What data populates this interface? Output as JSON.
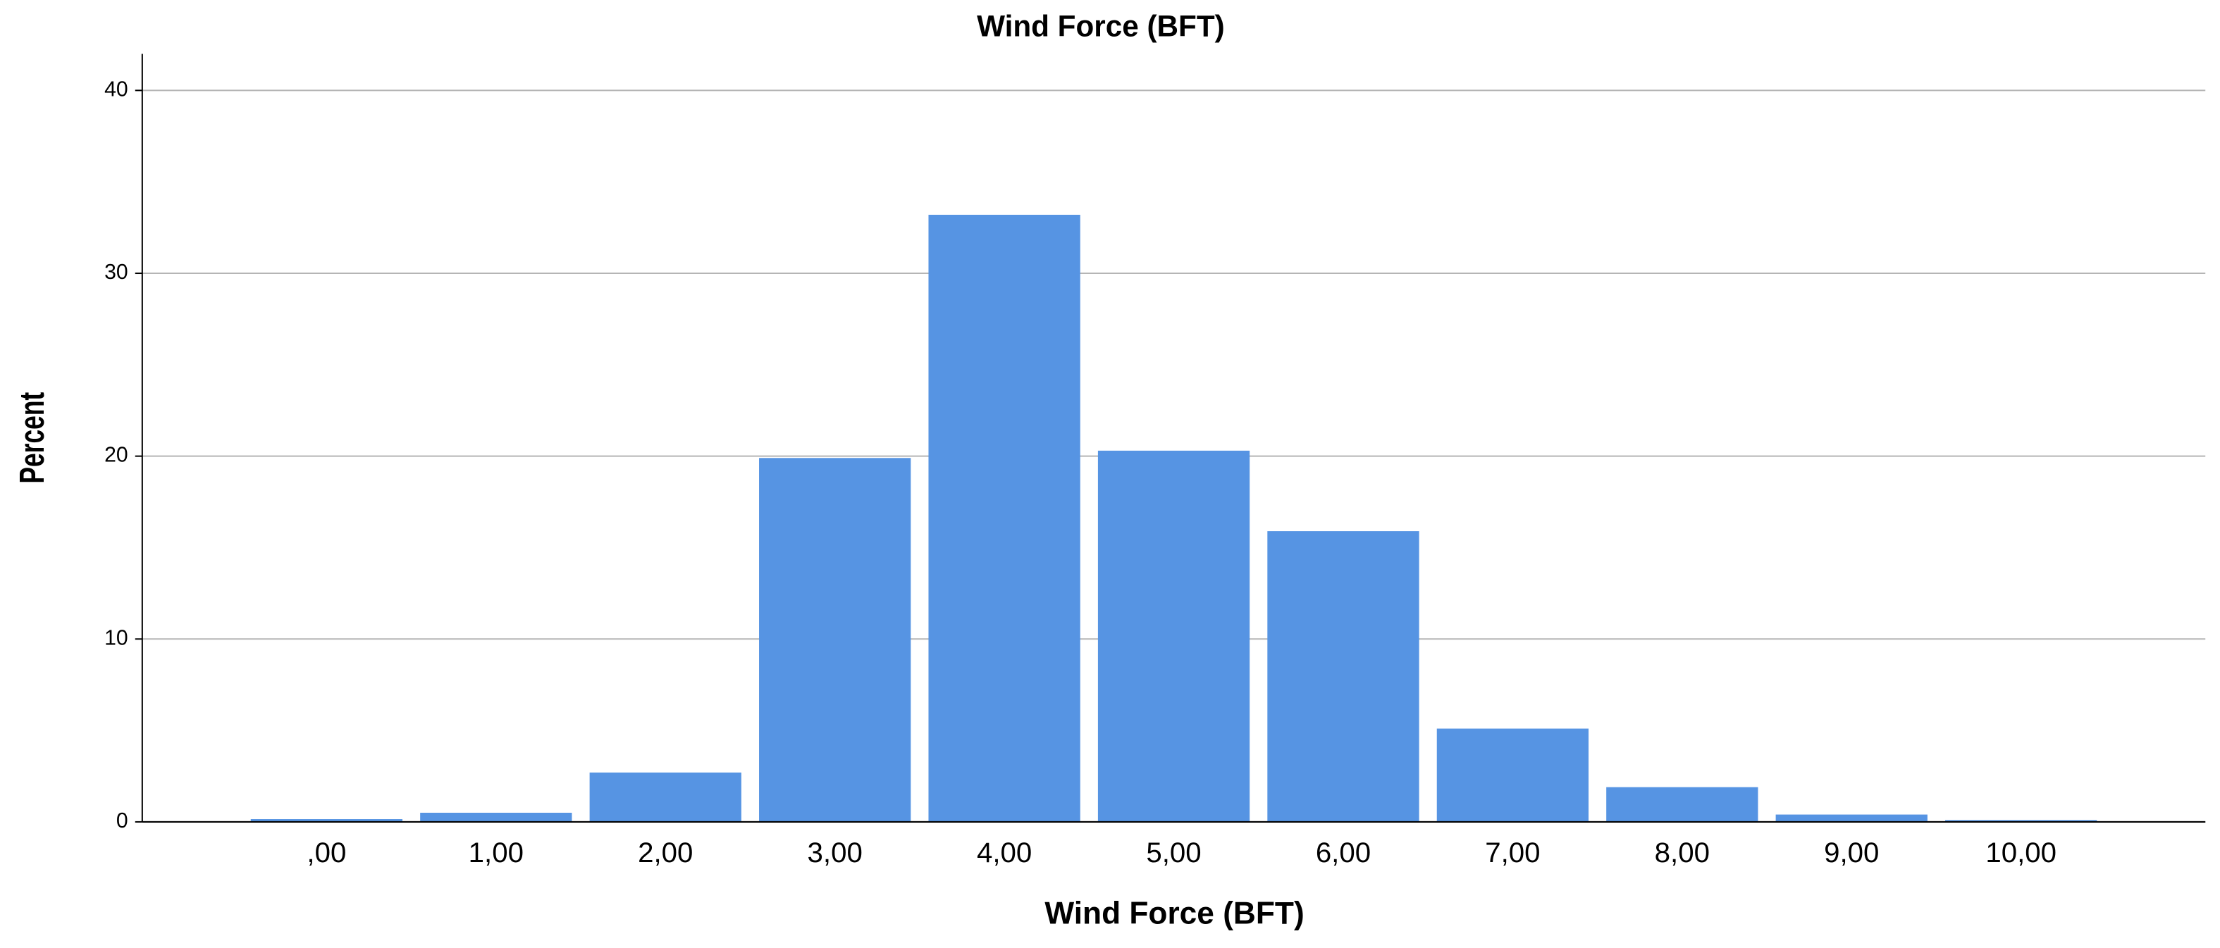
{
  "chart_data": {
    "type": "bar",
    "title": "Wind Force (BFT)",
    "x_label": "Wind Force (BFT)",
    "y_label": "Percent",
    "categories": [
      ",00",
      "1,00",
      "2,00",
      "3,00",
      "4,00",
      "5,00",
      "6,00",
      "7,00",
      "8,00",
      "9,00",
      "10,00"
    ],
    "values": [
      0.15,
      0.5,
      2.7,
      19.9,
      33.2,
      20.3,
      15.9,
      5.1,
      1.9,
      0.4,
      0.1
    ],
    "color": "#5694e3",
    "ylim": [
      0,
      42
    ],
    "yticks": [
      0,
      10,
      20,
      30,
      40
    ],
    "grid": true
  }
}
